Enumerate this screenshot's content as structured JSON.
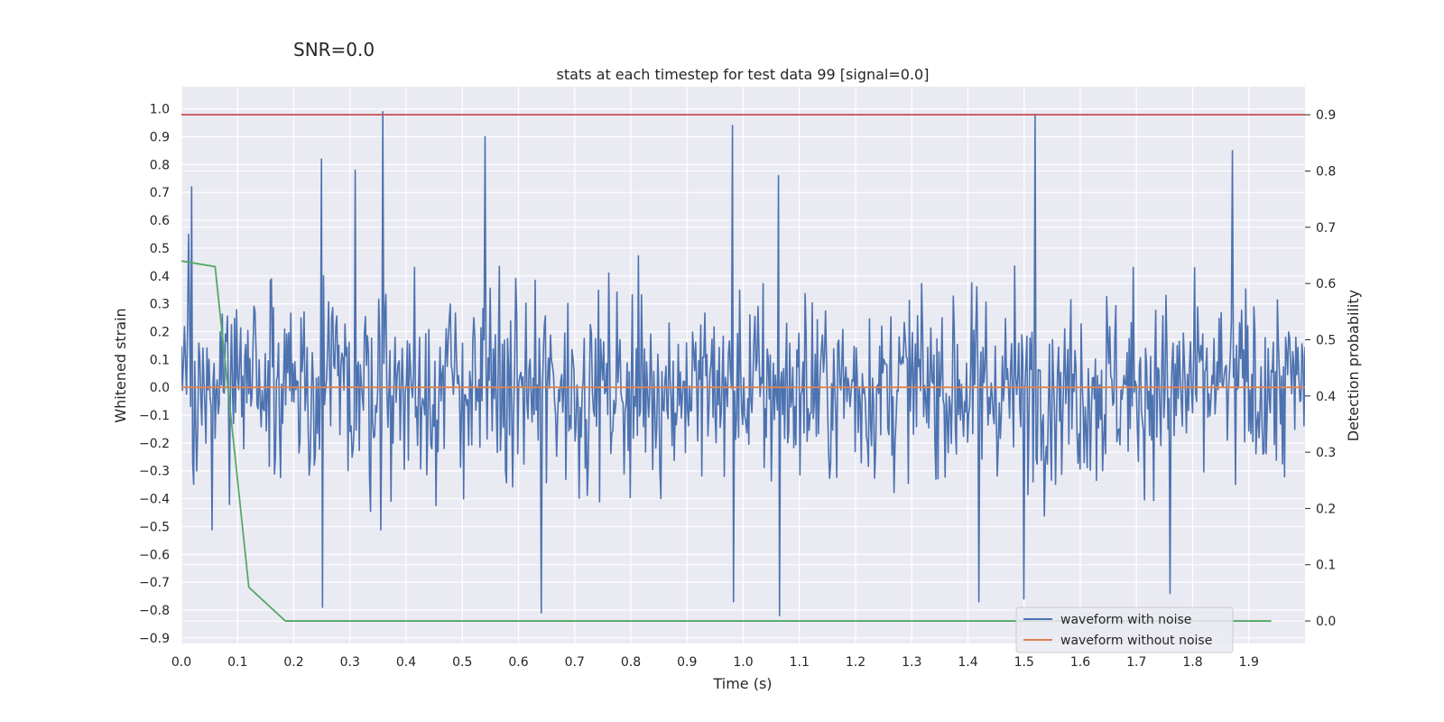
{
  "chart_data": {
    "type": "line",
    "suptitle": "SNR=0.0",
    "title": "stats at each timestep for test data 99 [signal=0.0]",
    "xlabel": "Time (s)",
    "ylabel": "Whitened strain",
    "y2label": "Detection probability",
    "xlim": [
      0.0,
      2.0
    ],
    "ylim": [
      -0.92,
      1.08
    ],
    "y2lim": [
      -0.04,
      0.95
    ],
    "xticks": [
      "0.0",
      "0.1",
      "0.2",
      "0.3",
      "0.4",
      "0.5",
      "0.6",
      "0.7",
      "0.8",
      "0.9",
      "1.0",
      "1.1",
      "1.2",
      "1.3",
      "1.4",
      "1.5",
      "1.6",
      "1.7",
      "1.8",
      "1.9"
    ],
    "yticks": [
      "1.0",
      "0.9",
      "0.8",
      "0.7",
      "0.6",
      "0.5",
      "0.4",
      "0.3",
      "0.2",
      "0.1",
      "0.0",
      "−0.1",
      "−0.2",
      "−0.3",
      "−0.4",
      "−0.5",
      "−0.6",
      "−0.7",
      "−0.8",
      "−0.9"
    ],
    "y2ticks": [
      "0.9",
      "0.8",
      "0.7",
      "0.6",
      "0.5",
      "0.4",
      "0.3",
      "0.2",
      "0.1",
      "0.0"
    ],
    "grid": true,
    "legend_position": "lower-right",
    "series": [
      {
        "name": "waveform with noise",
        "color": "#4c72b0",
        "axis": "left",
        "kind": "noise",
        "n_points": 1100,
        "peaks": [
          {
            "x": 0.013,
            "y": 0.55
          },
          {
            "x": 0.018,
            "y": 0.72
          },
          {
            "x": 0.25,
            "y": 0.82
          },
          {
            "x": 0.252,
            "y": -0.79
          },
          {
            "x": 0.31,
            "y": 0.78
          },
          {
            "x": 0.358,
            "y": 0.99
          },
          {
            "x": 0.54,
            "y": 0.9
          },
          {
            "x": 0.64,
            "y": -0.81
          },
          {
            "x": 0.98,
            "y": 0.94
          },
          {
            "x": 0.982,
            "y": -0.77
          },
          {
            "x": 1.063,
            "y": 0.76
          },
          {
            "x": 1.065,
            "y": -0.82
          },
          {
            "x": 1.52,
            "y": 0.98
          },
          {
            "x": 1.5,
            "y": -0.76
          },
          {
            "x": 1.87,
            "y": 0.85
          },
          {
            "x": 1.76,
            "y": -0.74
          },
          {
            "x": 1.42,
            "y": -0.77
          }
        ]
      },
      {
        "name": "waveform without noise",
        "color": "#dd8452",
        "axis": "left",
        "x": [
          0.0,
          2.0
        ],
        "y": [
          0.0,
          0.0
        ]
      },
      {
        "color": "#55a868",
        "axis": "right",
        "x": [
          0.0,
          0.06,
          0.12,
          0.185,
          0.5,
          1.0,
          1.5,
          1.94
        ],
        "y": [
          0.64,
          0.63,
          0.06,
          0.0,
          0.0,
          0.0,
          0.0,
          0.0
        ]
      },
      {
        "color": "#c44e52",
        "axis": "right",
        "x": [
          0.0,
          2.0
        ],
        "y": [
          0.9,
          0.9
        ]
      }
    ]
  }
}
